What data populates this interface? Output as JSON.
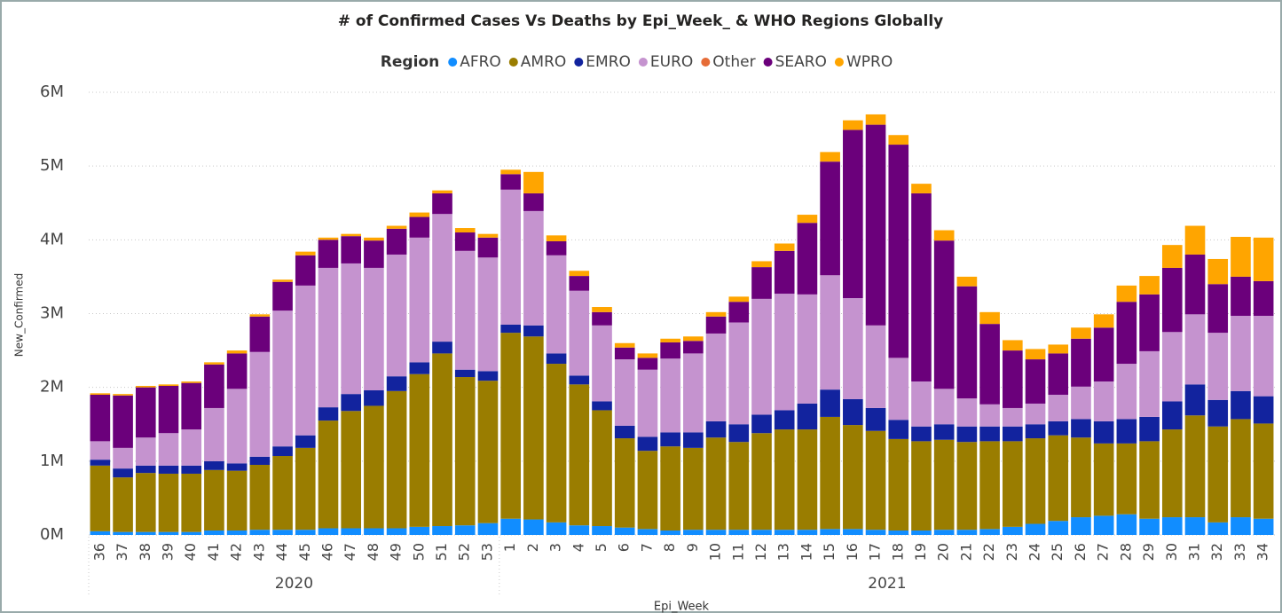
{
  "chart_data": {
    "type": "stacked_bar",
    "title": "# of Confirmed Cases Vs Deaths by Epi_Week_ & WHO Regions Globally",
    "legend_title": "Region",
    "x_label": "Epi_Week",
    "y_label": "New_Confirmed",
    "categories": [
      "36",
      "37",
      "38",
      "39",
      "40",
      "41",
      "42",
      "43",
      "44",
      "45",
      "46",
      "47",
      "48",
      "49",
      "50",
      "51",
      "52",
      "53",
      "1",
      "2",
      "3",
      "4",
      "5",
      "6",
      "7",
      "8",
      "9",
      "10",
      "11",
      "12",
      "13",
      "14",
      "15",
      "16",
      "17",
      "18",
      "19",
      "20",
      "21",
      "22",
      "23",
      "24",
      "25",
      "26",
      "27",
      "28",
      "29",
      "30",
      "31",
      "32",
      "33",
      "34"
    ],
    "category_groups": [
      {
        "label": "2020",
        "span": 18
      },
      {
        "label": "2021",
        "span": 34
      }
    ],
    "ylim": [
      0,
      6000000
    ],
    "yticks": [
      {
        "value": 0,
        "label": "0M"
      },
      {
        "value": 1000000,
        "label": "1M"
      },
      {
        "value": 2000000,
        "label": "2M"
      },
      {
        "value": 3000000,
        "label": "3M"
      },
      {
        "value": 4000000,
        "label": "4M"
      },
      {
        "value": 5000000,
        "label": "5M"
      },
      {
        "value": 6000000,
        "label": "6M"
      }
    ],
    "grid": true,
    "legend_position": "top",
    "series": [
      {
        "name": "AFRO",
        "color": "#118dff",
        "values": [
          50000,
          40000,
          40000,
          40000,
          40000,
          60000,
          60000,
          70000,
          70000,
          70000,
          90000,
          90000,
          90000,
          90000,
          110000,
          120000,
          130000,
          160000,
          220000,
          210000,
          170000,
          130000,
          120000,
          100000,
          80000,
          60000,
          70000,
          70000,
          70000,
          70000,
          70000,
          70000,
          80000,
          80000,
          70000,
          60000,
          60000,
          70000,
          70000,
          80000,
          110000,
          150000,
          190000,
          240000,
          260000,
          280000,
          220000,
          240000,
          240000,
          170000,
          240000,
          220000
        ]
      },
      {
        "name": "AMRO",
        "color": "#9a7d00",
        "values": [
          890000,
          740000,
          800000,
          790000,
          790000,
          820000,
          810000,
          880000,
          1000000,
          1110000,
          1460000,
          1590000,
          1660000,
          1860000,
          2070000,
          2340000,
          2010000,
          1930000,
          2520000,
          2480000,
          2150000,
          1910000,
          1570000,
          1210000,
          1060000,
          1140000,
          1110000,
          1250000,
          1190000,
          1310000,
          1360000,
          1360000,
          1520000,
          1410000,
          1340000,
          1240000,
          1210000,
          1220000,
          1190000,
          1190000,
          1160000,
          1160000,
          1160000,
          1080000,
          980000,
          960000,
          1050000,
          1190000,
          1380000,
          1300000,
          1330000,
          1290000
        ]
      },
      {
        "name": "EMRO",
        "color": "#12239e",
        "values": [
          80000,
          120000,
          100000,
          110000,
          110000,
          120000,
          100000,
          110000,
          130000,
          170000,
          180000,
          230000,
          210000,
          200000,
          160000,
          160000,
          100000,
          130000,
          110000,
          150000,
          140000,
          120000,
          120000,
          170000,
          190000,
          190000,
          210000,
          220000,
          240000,
          250000,
          260000,
          350000,
          370000,
          350000,
          310000,
          260000,
          200000,
          210000,
          210000,
          200000,
          200000,
          190000,
          190000,
          250000,
          300000,
          330000,
          330000,
          380000,
          420000,
          360000,
          380000,
          370000
        ]
      },
      {
        "name": "EURO",
        "color": "#c593cf",
        "values": [
          250000,
          280000,
          380000,
          440000,
          490000,
          720000,
          1010000,
          1420000,
          1840000,
          2030000,
          1890000,
          1770000,
          1660000,
          1650000,
          1690000,
          1730000,
          1610000,
          1540000,
          1830000,
          1550000,
          1330000,
          1150000,
          1030000,
          900000,
          910000,
          1000000,
          1070000,
          1190000,
          1380000,
          1570000,
          1580000,
          1480000,
          1550000,
          1370000,
          1120000,
          840000,
          610000,
          480000,
          380000,
          300000,
          250000,
          280000,
          360000,
          440000,
          540000,
          750000,
          890000,
          940000,
          950000,
          910000,
          1020000,
          1090000
        ]
      },
      {
        "name": "Other",
        "color": "#e66c37",
        "values": [
          0,
          0,
          0,
          0,
          0,
          0,
          0,
          0,
          0,
          0,
          0,
          0,
          0,
          0,
          0,
          0,
          0,
          0,
          0,
          0,
          0,
          0,
          0,
          0,
          0,
          0,
          0,
          0,
          0,
          0,
          0,
          0,
          0,
          0,
          0,
          0,
          0,
          0,
          0,
          0,
          0,
          0,
          0,
          0,
          0,
          0,
          0,
          0,
          0,
          0,
          0,
          0
        ]
      },
      {
        "name": "SEARO",
        "color": "#6b007b",
        "values": [
          630000,
          710000,
          680000,
          640000,
          630000,
          590000,
          480000,
          480000,
          390000,
          410000,
          380000,
          370000,
          370000,
          350000,
          280000,
          280000,
          250000,
          270000,
          210000,
          240000,
          190000,
          200000,
          180000,
          160000,
          160000,
          220000,
          170000,
          230000,
          280000,
          430000,
          580000,
          970000,
          1540000,
          2280000,
          2720000,
          2890000,
          2550000,
          2010000,
          1520000,
          1090000,
          780000,
          600000,
          560000,
          650000,
          730000,
          840000,
          770000,
          870000,
          810000,
          660000,
          530000,
          470000
        ]
      },
      {
        "name": "WPRO",
        "color": "#ffa500",
        "values": [
          20000,
          20000,
          20000,
          20000,
          20000,
          30000,
          40000,
          30000,
          30000,
          50000,
          30000,
          30000,
          40000,
          40000,
          60000,
          40000,
          60000,
          50000,
          60000,
          290000,
          80000,
          70000,
          70000,
          60000,
          60000,
          50000,
          60000,
          60000,
          70000,
          80000,
          100000,
          110000,
          130000,
          130000,
          140000,
          130000,
          130000,
          140000,
          130000,
          160000,
          140000,
          140000,
          120000,
          150000,
          180000,
          220000,
          250000,
          310000,
          390000,
          340000,
          540000,
          590000
        ]
      }
    ]
  }
}
